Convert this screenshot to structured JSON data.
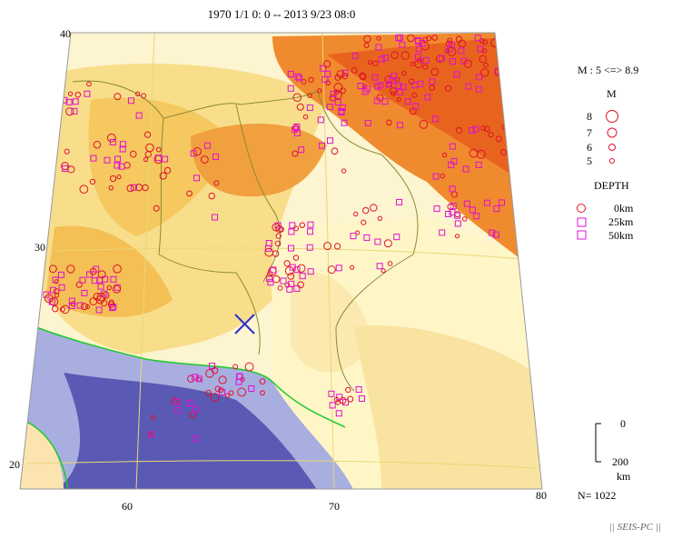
{
  "title": "1970 1/1 0: 0 -- 2013 9/23 08:0",
  "axes": {
    "lat_labels": [
      "40",
      "30",
      "20"
    ],
    "lon_labels": [
      "60",
      "70",
      "80"
    ]
  },
  "legend": {
    "mag_range": "M : 5 <=> 8.9",
    "mag_header": "M",
    "mag_items": [
      "8",
      "7",
      "6",
      "5"
    ],
    "depth_header": "DEPTH",
    "depth_items": [
      "0km",
      "25km",
      "50km"
    ],
    "scale_top": "0",
    "scale_bottom": "200",
    "scale_unit": "km"
  },
  "count": "N= 1022",
  "credit": "|| SEIS-PC ||",
  "colors": {
    "sea_deep": "#5a5ab4",
    "sea_shelf": "#a9aee0",
    "low_land": "#fff2b8",
    "mid_land": "#f7d27a",
    "high_land": "#f08a2e",
    "peak": "#e8641e",
    "eq_shallow": "#e0102a",
    "eq_deep": "#e010d0",
    "marker": "#2a30d0"
  }
}
